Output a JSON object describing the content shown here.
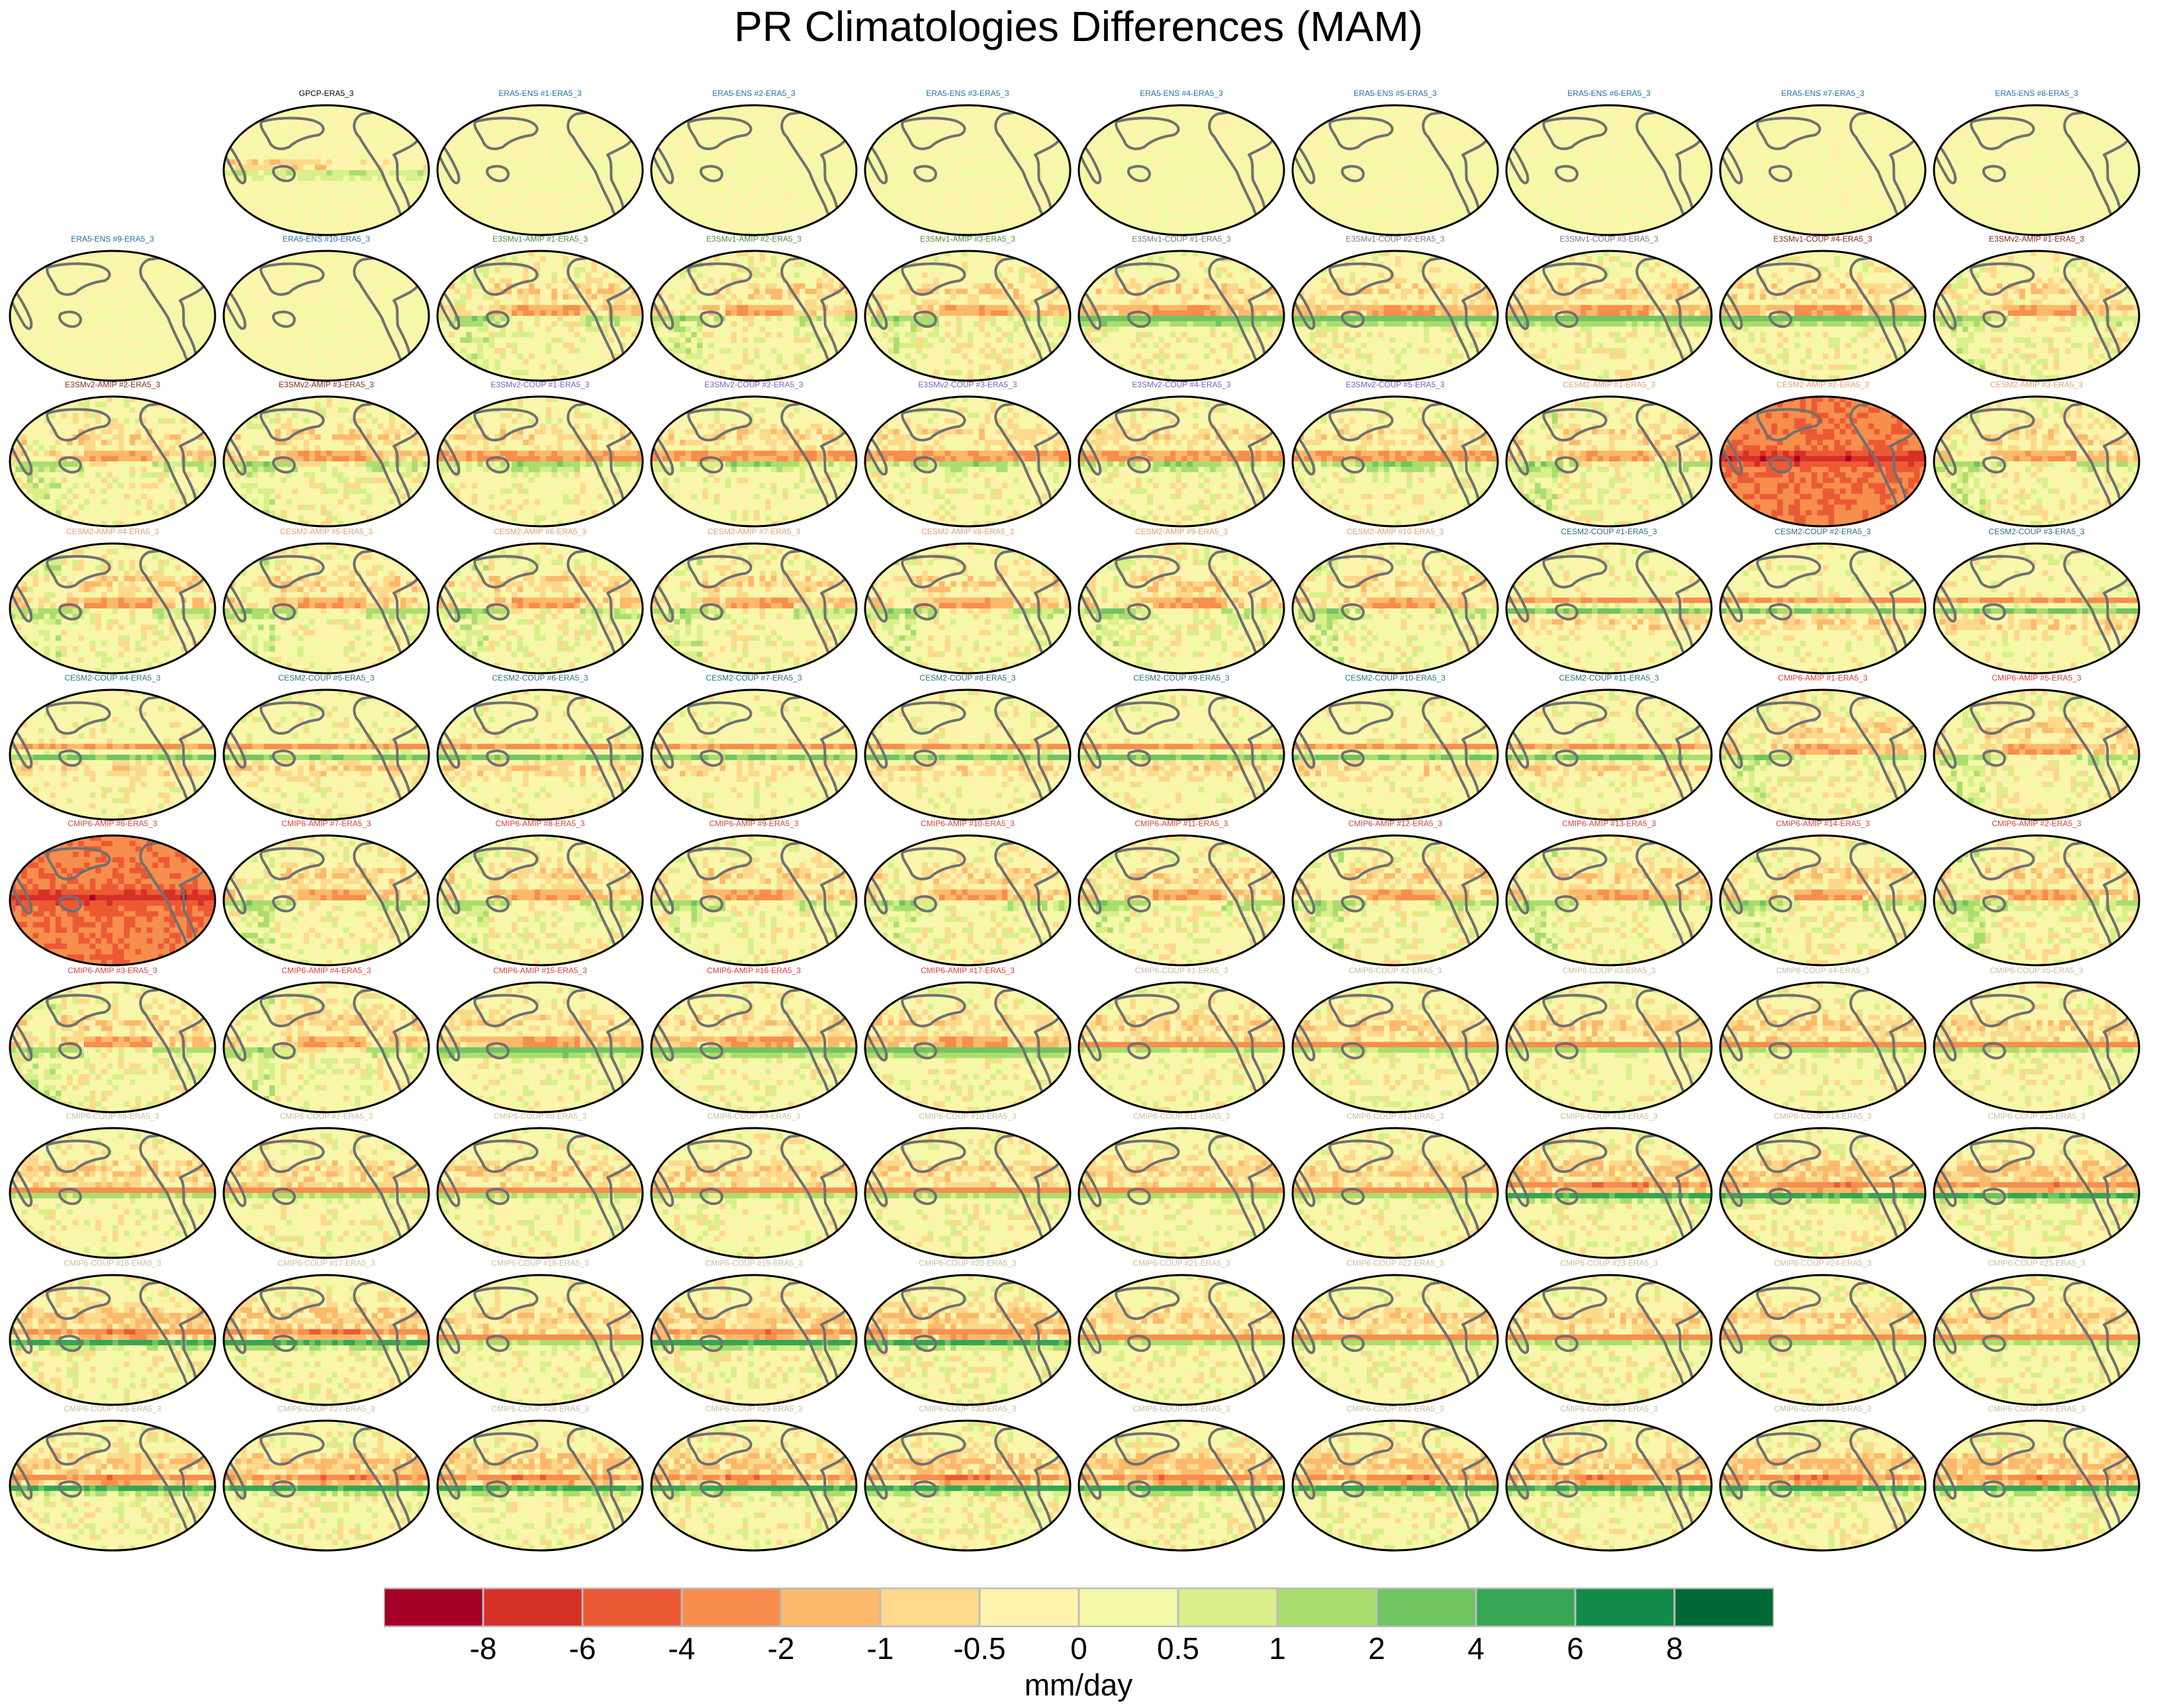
{
  "chart_data": {
    "type": "heatmap",
    "title": "PR Climatologies Differences (MAM)",
    "panel_projection": "Mollweide, Pacific-centered (180°)",
    "panels": [
      {
        "label": "GPCP-ERA5_3",
        "color": "#000000",
        "pattern": "obs"
      },
      {
        "label": "ERA5-ENS   #1-ERA5_3",
        "color": "#1f6fa6",
        "pattern": "ens"
      },
      {
        "label": "ERA5-ENS   #2-ERA5_3",
        "color": "#1f6fa6",
        "pattern": "ens"
      },
      {
        "label": "ERA5-ENS   #3-ERA5_3",
        "color": "#1f6fa6",
        "pattern": "ens"
      },
      {
        "label": "ERA5-ENS   #4-ERA5_3",
        "color": "#1f6fa6",
        "pattern": "ens"
      },
      {
        "label": "ERA5-ENS   #5-ERA5_3",
        "color": "#1f6fa6",
        "pattern": "ens"
      },
      {
        "label": "ERA5-ENS   #6-ERA5_3",
        "color": "#1f6fa6",
        "pattern": "ens"
      },
      {
        "label": "ERA5-ENS   #7-ERA5_3",
        "color": "#1f6fa6",
        "pattern": "ens"
      },
      {
        "label": "ERA5-ENS   #8-ERA5_3",
        "color": "#1f6fa6",
        "pattern": "ens"
      },
      {
        "label": "ERA5-ENS   #9-ERA5_3",
        "color": "#1f6fa6",
        "pattern": "ens"
      },
      {
        "label": "ERA5-ENS   #10-ERA5_3",
        "color": "#1f6fa6",
        "pattern": "ens"
      },
      {
        "label": "E3SMv1-AMIP #1-ERA5_3",
        "color": "#4e8f3a",
        "pattern": "amip"
      },
      {
        "label": "E3SMv1-AMIP #2-ERA5_3",
        "color": "#4e8f3a",
        "pattern": "amip"
      },
      {
        "label": "E3SMv1-AMIP #3-ERA5_3",
        "color": "#4e8f3a",
        "pattern": "amip"
      },
      {
        "label": "E3SMv1-COUP #1-ERA5_3",
        "color": "#7a7a7a",
        "pattern": "coupA"
      },
      {
        "label": "E3SMv1-COUP #2-ERA5_3",
        "color": "#7a7a7a",
        "pattern": "coupA"
      },
      {
        "label": "E3SMv1-COUP #3-ERA5_3",
        "color": "#7a7a7a",
        "pattern": "coupA"
      },
      {
        "label": "E3SMv1-COUP #4-ERA5_3",
        "color": "#8b2a12",
        "pattern": "coupA"
      },
      {
        "label": "E3SMv2-AMIP #1-ERA5_3",
        "color": "#8b2a12",
        "pattern": "amip"
      },
      {
        "label": "E3SMv2-AMIP #2-ERA5_3",
        "color": "#8b2a12",
        "pattern": "amip"
      },
      {
        "label": "E3SMv2-AMIP #3-ERA5_3",
        "color": "#8b2a12",
        "pattern": "amip"
      },
      {
        "label": "E3SMv2-COUP #1-ERA5_3",
        "color": "#7b5cc4",
        "pattern": "coupB"
      },
      {
        "label": "E3SMv2-COUP #2-ERA5_3",
        "color": "#7b5cc4",
        "pattern": "coupB"
      },
      {
        "label": "E3SMv2-COUP #3-ERA5_3",
        "color": "#7b5cc4",
        "pattern": "coupB"
      },
      {
        "label": "E3SMv2-COUP #4-ERA5_3",
        "color": "#7b5cc4",
        "pattern": "coupB"
      },
      {
        "label": "E3SMv2-COUP #5-ERA5_3",
        "color": "#7b5cc4",
        "pattern": "coupB"
      },
      {
        "label": "CESM2-AMIP  #1-ERA5_3",
        "color": "#e8a070",
        "pattern": "amip"
      },
      {
        "label": "CESM2-AMIP  #2-ERA5_3",
        "color": "#e8a070",
        "pattern": "redwarm"
      },
      {
        "label": "CESM2-AMIP  #3-ERA5_3",
        "color": "#e8a070",
        "pattern": "amip"
      },
      {
        "label": "CESM2-AMIP  #4-ERA5_3",
        "color": "#e8a070",
        "pattern": "amip"
      },
      {
        "label": "CESM2-AMIP  #5-ERA5_3",
        "color": "#e8a070",
        "pattern": "amip"
      },
      {
        "label": "CESM2-AMIP  #6-ERA5_3",
        "color": "#e8a070",
        "pattern": "amip"
      },
      {
        "label": "CESM2-AMIP  #7-ERA5_3",
        "color": "#e8a070",
        "pattern": "amip"
      },
      {
        "label": "CESM2-AMIP  #8-ERA5_3",
        "color": "#e8a070",
        "pattern": "amip"
      },
      {
        "label": "CESM2-AMIP  #9-ERA5_3",
        "color": "#e8a070",
        "pattern": "amip"
      },
      {
        "label": "CESM2-AMIP  #10-ERA5_3",
        "color": "#e8a070",
        "pattern": "amip"
      },
      {
        "label": "CESM2-COUP  #1-ERA5_3",
        "color": "#2f6f7f",
        "pattern": "cesmcoup"
      },
      {
        "label": "CESM2-COUP  #2-ERA5_3",
        "color": "#2f6f7f",
        "pattern": "cesmcoup"
      },
      {
        "label": "CESM2-COUP  #3-ERA5_3",
        "color": "#2f6f7f",
        "pattern": "cesmcoup"
      },
      {
        "label": "CESM2-COUP  #4-ERA5_3",
        "color": "#2f6f7f",
        "pattern": "cesmcoup"
      },
      {
        "label": "CESM2-COUP  #5-ERA5_3",
        "color": "#2f6f7f",
        "pattern": "cesmcoup"
      },
      {
        "label": "CESM2-COUP  #6-ERA5_3",
        "color": "#2f6f7f",
        "pattern": "cesmcoup"
      },
      {
        "label": "CESM2-COUP  #7-ERA5_3",
        "color": "#2f6f7f",
        "pattern": "cesmcoup"
      },
      {
        "label": "CESM2-COUP  #8-ERA5_3",
        "color": "#2f6f7f",
        "pattern": "cesmcoup"
      },
      {
        "label": "CESM2-COUP  #9-ERA5_3",
        "color": "#2f6f7f",
        "pattern": "cesmcoup"
      },
      {
        "label": "CESM2-COUP  #10-ERA5_3",
        "color": "#2f6f7f",
        "pattern": "cesmcoup"
      },
      {
        "label": "CESM2-COUP  #11-ERA5_3",
        "color": "#2f6f7f",
        "pattern": "cesmcoup"
      },
      {
        "label": "CMIP6-AMIP  #1-ERA5_3",
        "color": "#d9423a",
        "pattern": "amip"
      },
      {
        "label": "CMIP6-AMIP  #5-ERA5_3",
        "color": "#d9423a",
        "pattern": "amip"
      },
      {
        "label": "CMIP6-AMIP  #6-ERA5_3",
        "color": "#d9423a",
        "pattern": "redwarm"
      },
      {
        "label": "CMIP6-AMIP  #7-ERA5_3",
        "color": "#d9423a",
        "pattern": "amip"
      },
      {
        "label": "CMIP6-AMIP  #8-ERA5_3",
        "color": "#d9423a",
        "pattern": "amip"
      },
      {
        "label": "CMIP6-AMIP  #9-ERA5_3",
        "color": "#d9423a",
        "pattern": "amip"
      },
      {
        "label": "CMIP6-AMIP  #10-ERA5_3",
        "color": "#d9423a",
        "pattern": "amip"
      },
      {
        "label": "CMIP6-AMIP  #11-ERA5_3",
        "color": "#d9423a",
        "pattern": "amip"
      },
      {
        "label": "CMIP6-AMIP  #12-ERA5_3",
        "color": "#d9423a",
        "pattern": "amip"
      },
      {
        "label": "CMIP6-AMIP  #13-ERA5_3",
        "color": "#d9423a",
        "pattern": "amip"
      },
      {
        "label": "CMIP6-AMIP  #14-ERA5_3",
        "color": "#d9423a",
        "pattern": "amip"
      },
      {
        "label": "CMIP6-AMIP  #2-ERA5_3",
        "color": "#d9423a",
        "pattern": "amip"
      },
      {
        "label": "CMIP6-AMIP  #3-ERA5_3",
        "color": "#d9423a",
        "pattern": "amip"
      },
      {
        "label": "CMIP6-AMIP  #4-ERA5_3",
        "color": "#d9423a",
        "pattern": "amip"
      },
      {
        "label": "CMIP6-AMIP  #15-ERA5_3",
        "color": "#d9423a",
        "pattern": "coupA"
      },
      {
        "label": "CMIP6-AMIP  #16-ERA5_3",
        "color": "#d9423a",
        "pattern": "coupA"
      },
      {
        "label": "CMIP6-AMIP  #17-ERA5_3",
        "color": "#d9423a",
        "pattern": "coupA"
      },
      {
        "label": "CMIP6-COUP  #1-ERA5_3",
        "color": "#c8bd9c",
        "pattern": "cmipcoup"
      },
      {
        "label": "CMIP6-COUP  #2-ERA5_3",
        "color": "#c8bd9c",
        "pattern": "cmipcoup"
      },
      {
        "label": "CMIP6-COUP  #3-ERA5_3",
        "color": "#c8bd9c",
        "pattern": "cmipcoup"
      },
      {
        "label": "CMIP6-COUP  #4-ERA5_3",
        "color": "#c8bd9c",
        "pattern": "cmipcoup"
      },
      {
        "label": "CMIP6-COUP  #5-ERA5_3",
        "color": "#c8bd9c",
        "pattern": "cmipcoup"
      },
      {
        "label": "CMIP6-COUP  #6-ERA5_3",
        "color": "#c8bd9c",
        "pattern": "cmipcoup"
      },
      {
        "label": "CMIP6-COUP  #7-ERA5_3",
        "color": "#c8bd9c",
        "pattern": "cmipcoup"
      },
      {
        "label": "CMIP6-COUP  #8-ERA5_3",
        "color": "#c8bd9c",
        "pattern": "cmipcoup"
      },
      {
        "label": "CMIP6-COUP  #9-ERA5_3",
        "color": "#c8bd9c",
        "pattern": "cmipcoup"
      },
      {
        "label": "CMIP6-COUP  #10-ERA5_3",
        "color": "#c8bd9c",
        "pattern": "cmipcoup"
      },
      {
        "label": "CMIP6-COUP  #11-ERA5_3",
        "color": "#c8bd9c",
        "pattern": "cmipcoup"
      },
      {
        "label": "CMIP6-COUP  #12-ERA5_3",
        "color": "#c8bd9c",
        "pattern": "cmipcoup"
      },
      {
        "label": "CMIP6-COUP  #13-ERA5_3",
        "color": "#c8bd9c",
        "pattern": "coupDeep"
      },
      {
        "label": "CMIP6-COUP  #14-ERA5_3",
        "color": "#c8bd9c",
        "pattern": "coupDeep"
      },
      {
        "label": "CMIP6-COUP  #15-ERA5_3",
        "color": "#c8bd9c",
        "pattern": "coupDeep"
      },
      {
        "label": "CMIP6-COUP  #16-ERA5_3",
        "color": "#c8bd9c",
        "pattern": "coupDeep"
      },
      {
        "label": "CMIP6-COUP  #17-ERA5_3",
        "color": "#c8bd9c",
        "pattern": "coupDeep"
      },
      {
        "label": "CMIP6-COUP  #18-ERA5_3",
        "color": "#c8bd9c",
        "pattern": "cmipcoup"
      },
      {
        "label": "CMIP6-COUP  #19-ERA5_3",
        "color": "#c8bd9c",
        "pattern": "coupDeep"
      },
      {
        "label": "CMIP6-COUP  #20-ERA5_3",
        "color": "#c8bd9c",
        "pattern": "coupDeep"
      },
      {
        "label": "CMIP6-COUP  #21-ERA5_3",
        "color": "#c8bd9c",
        "pattern": "cmipcoup"
      },
      {
        "label": "CMIP6-COUP  #22-ERA5_3",
        "color": "#c8bd9c",
        "pattern": "cmipcoup"
      },
      {
        "label": "CMIP6-COUP  #23-ERA5_3",
        "color": "#c8bd9c",
        "pattern": "cmipcoup"
      },
      {
        "label": "CMIP6-COUP  #24-ERA5_3",
        "color": "#c8bd9c",
        "pattern": "cmipcoup"
      },
      {
        "label": "CMIP6-COUP  #25-ERA5_3",
        "color": "#c8bd9c",
        "pattern": "cmipcoup"
      },
      {
        "label": "CMIP6-COUP  #26-ERA5_3",
        "color": "#c8bd9c",
        "pattern": "coupDeep"
      },
      {
        "label": "CMIP6-COUP  #27-ERA5_3",
        "color": "#c8bd9c",
        "pattern": "coupDeep"
      },
      {
        "label": "CMIP6-COUP  #28-ERA5_3",
        "color": "#c8bd9c",
        "pattern": "coupDeep"
      },
      {
        "label": "CMIP6-COUP  #29-ERA5_3",
        "color": "#c8bd9c",
        "pattern": "coupDeep"
      },
      {
        "label": "CMIP6-COUP  #30-ERA5_3",
        "color": "#c8bd9c",
        "pattern": "coupDeep"
      },
      {
        "label": "CMIP6-COUP  #31-ERA5_3",
        "color": "#c8bd9c",
        "pattern": "coupDeep"
      },
      {
        "label": "CMIP6-COUP  #32-ERA5_3",
        "color": "#c8bd9c",
        "pattern": "coupDeep"
      },
      {
        "label": "CMIP6-COUP  #33-ERA5_3",
        "color": "#c8bd9c",
        "pattern": "coupDeep"
      },
      {
        "label": "CMIP6-COUP  #34-ERA5_3",
        "color": "#c8bd9c",
        "pattern": "coupDeep"
      },
      {
        "label": "CMIP6-COUP  #35-ERA5_3",
        "color": "#c8bd9c",
        "pattern": "coupDeep"
      }
    ],
    "colorbar": {
      "levels": [
        -8,
        -6,
        -4,
        -2,
        -1,
        -0.5,
        0,
        0.5,
        1,
        2,
        4,
        6,
        8
      ],
      "level_labels": [
        "-8",
        "-6",
        "-4",
        "-2",
        "-1",
        "-0.5",
        "0",
        "0.5",
        "1",
        "2",
        "4",
        "6",
        "8"
      ],
      "colors": [
        "#a50026",
        "#d73027",
        "#ec5a35",
        "#f78e4d",
        "#fdb96b",
        "#fed98b",
        "#fef4ad",
        "#f3f9a7",
        "#d8ef8a",
        "#aadd6d",
        "#70c462",
        "#36a654",
        "#138a48",
        "#006837"
      ],
      "units": "mm/day"
    }
  }
}
